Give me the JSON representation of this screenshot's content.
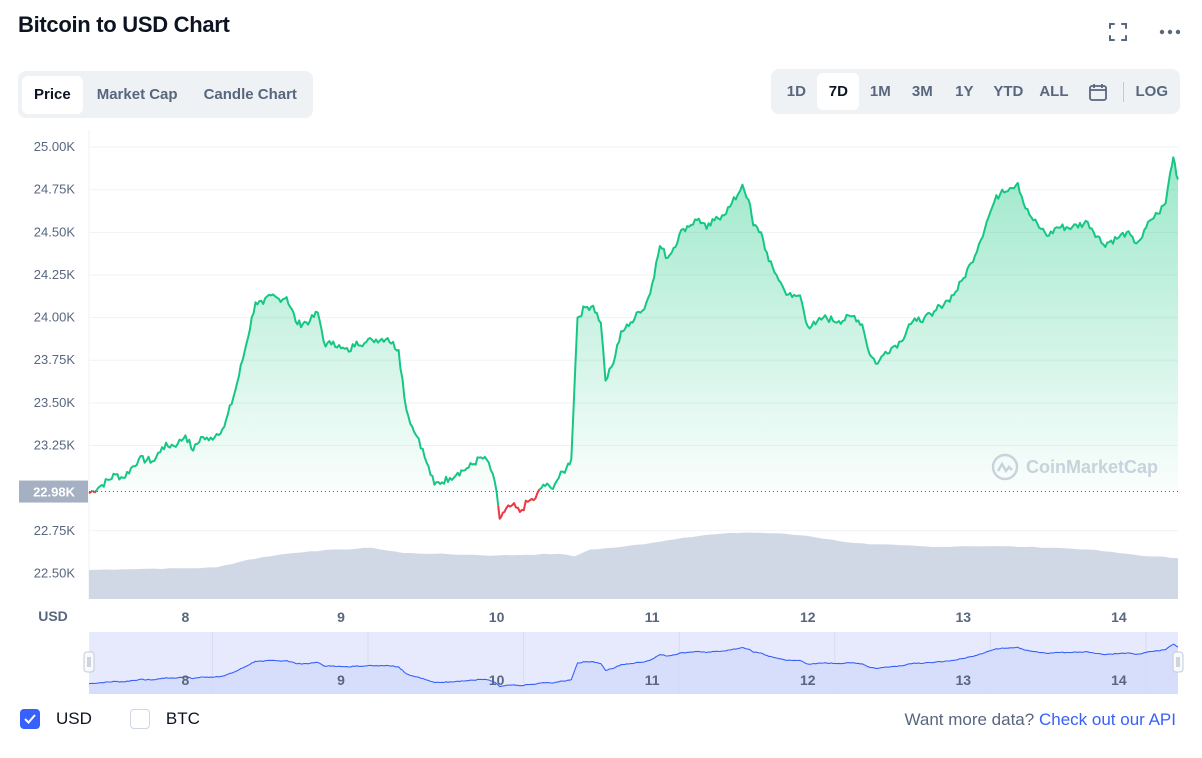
{
  "title": "Bitcoin to USD Chart",
  "tabs": [
    {
      "label": "Price",
      "active": true
    },
    {
      "label": "Market Cap",
      "active": false
    },
    {
      "label": "Candle Chart",
      "active": false
    }
  ],
  "ranges": [
    {
      "label": "1D",
      "active": false
    },
    {
      "label": "7D",
      "active": true
    },
    {
      "label": "1M",
      "active": false
    },
    {
      "label": "3M",
      "active": false
    },
    {
      "label": "1Y",
      "active": false
    },
    {
      "label": "YTD",
      "active": false
    },
    {
      "label": "ALL",
      "active": false
    }
  ],
  "log_label": "LOG",
  "icons": {
    "fullscreen": "fullscreen-icon",
    "more": "more-icon",
    "calendar": "calendar-icon"
  },
  "watermark": "CoinMarketCap",
  "legend": {
    "usd": {
      "label": "USD",
      "checked": true
    },
    "btc": {
      "label": "BTC",
      "checked": false
    }
  },
  "more_data": {
    "text": "Want more data?",
    "link": "Check out our API"
  },
  "colors": {
    "up": "#16c784",
    "down": "#ea3943",
    "volume": "#cfd6e4",
    "navigator_line": "#3861fb",
    "accent": "#3861fb"
  },
  "chart_data": {
    "type": "area",
    "currency_label": "USD",
    "yticks": [
      "25.00K",
      "24.75K",
      "24.50K",
      "24.25K",
      "24.00K",
      "23.75K",
      "23.50K",
      "23.25K",
      "22.75K",
      "22.50K"
    ],
    "ytick_values": [
      25000,
      24750,
      24500,
      24250,
      24000,
      23750,
      23500,
      23250,
      22750,
      22500
    ],
    "reference_label": "22.98K",
    "reference_value": 22980,
    "ylim": [
      22350,
      25100
    ],
    "xlim": [
      7.38,
      14.38
    ],
    "xticks": [
      "8",
      "9",
      "10",
      "11",
      "12",
      "13",
      "14"
    ],
    "xtick_values": [
      8,
      9,
      10,
      11,
      12,
      13,
      14
    ],
    "price": {
      "x": [
        7.38,
        7.45,
        7.55,
        7.6,
        7.7,
        7.8,
        7.85,
        7.95,
        8.0,
        8.05,
        8.1,
        8.15,
        8.25,
        8.32,
        8.38,
        8.45,
        8.5,
        8.55,
        8.6,
        8.65,
        8.72,
        8.8,
        8.85,
        8.9,
        8.95,
        9.0,
        9.05,
        9.1,
        9.15,
        9.2,
        9.3,
        9.37,
        9.42,
        9.47,
        9.5,
        9.55,
        9.6,
        9.7,
        9.75,
        9.82,
        9.9,
        9.95,
        10.0,
        10.02,
        10.05,
        10.1,
        10.15,
        10.2,
        10.25,
        10.3,
        10.35,
        10.4,
        10.45,
        10.48,
        10.52,
        10.57,
        10.62,
        10.67,
        10.7,
        10.75,
        10.8,
        10.85,
        10.9,
        10.95,
        11.0,
        11.05,
        11.1,
        11.2,
        11.3,
        11.35,
        11.4,
        11.45,
        11.5,
        11.55,
        11.58,
        11.62,
        11.65,
        11.7,
        11.75,
        11.8,
        11.85,
        11.9,
        11.95,
        12.0,
        12.05,
        12.1,
        12.2,
        12.3,
        12.35,
        12.4,
        12.45,
        12.5,
        12.55,
        12.6,
        12.65,
        12.7,
        12.75,
        12.8,
        12.85,
        12.9,
        12.95,
        13.0,
        13.05,
        13.1,
        13.15,
        13.2,
        13.25,
        13.3,
        13.35,
        13.4,
        13.45,
        13.5,
        13.55,
        13.6,
        13.7,
        13.8,
        13.9,
        14.0,
        14.05,
        14.1,
        14.15,
        14.2,
        14.25,
        14.3,
        14.33,
        14.35,
        14.38
      ],
      "y": [
        22970,
        23010,
        23080,
        23060,
        23170,
        23160,
        23240,
        23260,
        23310,
        23220,
        23300,
        23280,
        23360,
        23570,
        23800,
        24090,
        24080,
        24130,
        24110,
        24120,
        23960,
        23980,
        24030,
        23830,
        23860,
        23820,
        23800,
        23860,
        23850,
        23870,
        23880,
        23810,
        23460,
        23330,
        23290,
        23150,
        23020,
        23060,
        23090,
        23120,
        23180,
        23150,
        22980,
        22820,
        22860,
        22900,
        22860,
        22920,
        22940,
        23020,
        23000,
        23060,
        23120,
        23170,
        24000,
        24060,
        24070,
        23970,
        23630,
        23730,
        23920,
        23950,
        24030,
        24050,
        24200,
        24420,
        24350,
        24520,
        24580,
        24520,
        24570,
        24600,
        24650,
        24720,
        24780,
        24690,
        24540,
        24500,
        24330,
        24250,
        24160,
        24120,
        24130,
        23950,
        23960,
        24000,
        23980,
        24010,
        23960,
        23780,
        23730,
        23800,
        23830,
        23860,
        23960,
        23980,
        24000,
        24010,
        24070,
        24100,
        24150,
        24230,
        24320,
        24430,
        24560,
        24680,
        24750,
        24760,
        24790,
        24640,
        24570,
        24520,
        24480,
        24530,
        24530,
        24560,
        24430,
        24470,
        24500,
        24440,
        24470,
        24570,
        24610,
        24670,
        24850,
        24940,
        24810
      ]
    },
    "volume": {
      "x": [
        7.38,
        7.6,
        7.8,
        8.0,
        8.2,
        8.4,
        8.6,
        8.8,
        9.0,
        9.2,
        9.4,
        9.6,
        9.8,
        10.0,
        10.2,
        10.4,
        10.5,
        10.6,
        10.8,
        11.0,
        11.2,
        11.4,
        11.6,
        11.8,
        12.0,
        12.2,
        12.4,
        12.6,
        12.8,
        13.0,
        13.2,
        13.4,
        13.6,
        13.8,
        14.0,
        14.2,
        14.38
      ],
      "y": [
        22520,
        22525,
        22528,
        22530,
        22535,
        22580,
        22610,
        22630,
        22640,
        22650,
        22620,
        22615,
        22610,
        22605,
        22610,
        22615,
        22600,
        22640,
        22655,
        22680,
        22710,
        22730,
        22740,
        22735,
        22720,
        22690,
        22670,
        22665,
        22655,
        22660,
        22660,
        22655,
        22650,
        22640,
        22620,
        22600,
        22590
      ]
    }
  }
}
